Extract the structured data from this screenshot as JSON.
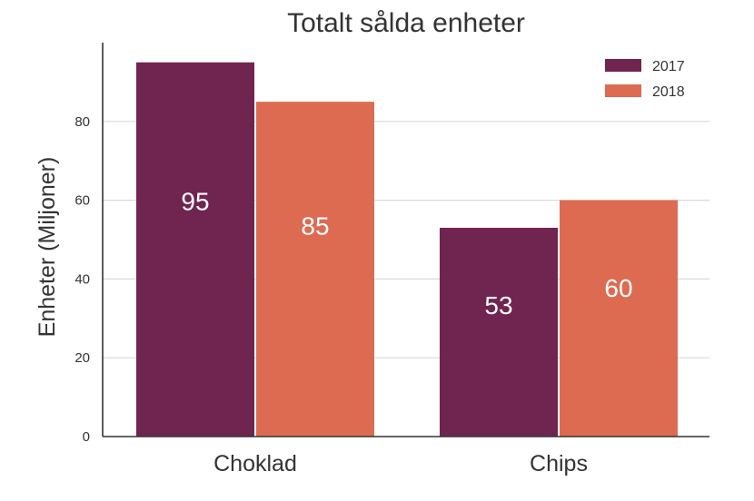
{
  "chart_data": {
    "type": "bar",
    "title": "Totalt sålda enheter",
    "xlabel": "",
    "ylabel": "Enheter (Miljoner)",
    "categories": [
      "Choklad",
      "Chips"
    ],
    "series": [
      {
        "name": "2017",
        "values": [
          95,
          53
        ],
        "color": "#6f2550"
      },
      {
        "name": "2018",
        "values": [
          85,
          60
        ],
        "color": "#dd6b52"
      }
    ],
    "ylim": [
      0,
      100
    ],
    "yticks": [
      0,
      20,
      40,
      60,
      80
    ],
    "grid": true,
    "legend_position": "top-right",
    "data_labels": true
  }
}
